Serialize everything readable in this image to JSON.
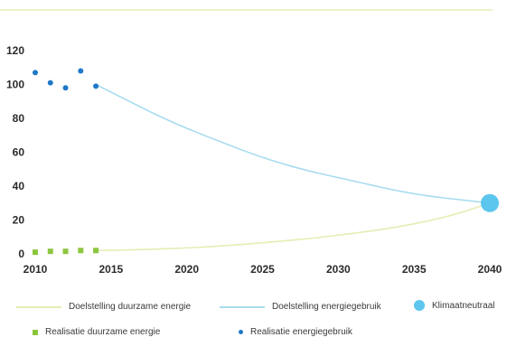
{
  "chart_data": {
    "type": "line",
    "xlim": [
      2010,
      2040
    ],
    "ylim": [
      0,
      120
    ],
    "x_ticks": [
      "2010",
      "2015",
      "2020",
      "2025",
      "2030",
      "2035",
      "2040"
    ],
    "y_ticks": [
      "0",
      "20",
      "40",
      "60",
      "80",
      "100",
      "120"
    ],
    "grid": false,
    "legend_position": "bottom",
    "colors": {
      "target_energy": "#a7dcef",
      "target_renewable": "#e6edb4",
      "actual_renewable": "#8cc63f",
      "actual_energy": "#1f78c8",
      "climate_neutral": "#5cc6ee"
    },
    "series": [
      {
        "name": "Doelstelling energiegebruik",
        "kind": "line",
        "x": [
          2014,
          2016,
          2018,
          2020,
          2022,
          2024,
          2026,
          2028,
          2030,
          2032,
          2034,
          2036,
          2038,
          2040
        ],
        "values": [
          100,
          91,
          82,
          74,
          67,
          60,
          54,
          49,
          45,
          41,
          37,
          34,
          32,
          30
        ]
      },
      {
        "name": "Doelstelling duurzame energie",
        "kind": "line",
        "x": [
          2014,
          2016,
          2018,
          2020,
          2022,
          2024,
          2026,
          2028,
          2030,
          2032,
          2034,
          2036,
          2038,
          2040
        ],
        "values": [
          2,
          2.3,
          2.8,
          3.5,
          4.5,
          5.8,
          7.3,
          9,
          11,
          13.3,
          16,
          19.5,
          24,
          30
        ]
      },
      {
        "name": "Realisatie duurzame energie",
        "kind": "square-marker",
        "x": [
          2010,
          2011,
          2012,
          2013,
          2014
        ],
        "values": [
          1,
          1.5,
          1.5,
          2,
          2
        ]
      },
      {
        "name": "Realisatie energiegebruik",
        "kind": "dot-marker",
        "x": [
          2010,
          2011,
          2012,
          2013,
          2014
        ],
        "values": [
          107,
          101,
          98,
          108,
          99
        ]
      },
      {
        "name": "Klimaatneutraal",
        "kind": "big-dot",
        "x": [
          2040
        ],
        "values": [
          30
        ]
      }
    ]
  },
  "legend": {
    "target_renewable": "Doelstelling duurzame energie",
    "target_energy": "Doelstelling energiegebruik",
    "climate_neutral": "Klimaatneutraal",
    "actual_renewable": "Realisatie duurzame energie",
    "actual_energy": "Realisatie energiegebruik"
  }
}
